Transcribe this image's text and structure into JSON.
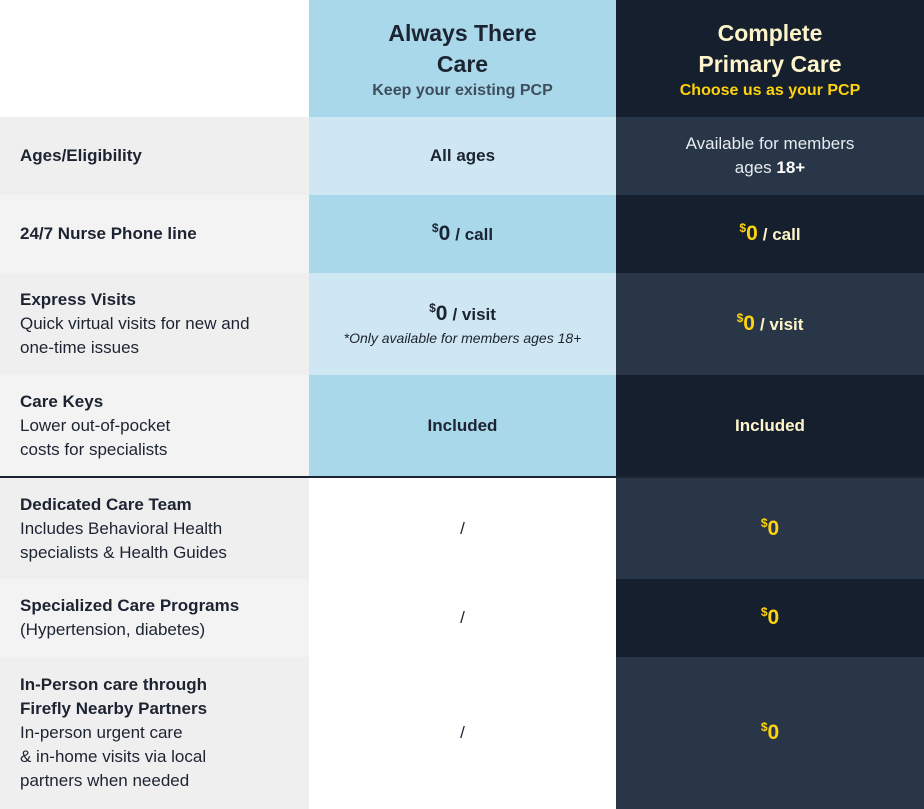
{
  "header": {
    "col2_title_line1": "Always There",
    "col2_title_line2": "Care",
    "col2_subtitle": "Keep your existing PCP",
    "col3_title_line1": "Complete",
    "col3_title_line2": "Primary Care",
    "col3_subtitle": "Choose us as your PCP"
  },
  "rows": [
    {
      "label": "Ages/Eligibility",
      "col2": "All ages",
      "col3_line1": "Available for members",
      "col3_line2_prefix": "ages ",
      "col3_line2_bold": "18+"
    },
    {
      "label": "24/7 Nurse Phone line",
      "col2_currency": "$",
      "col2_amount": "0",
      "col2_unit": "/ call",
      "col3_currency": "$",
      "col3_amount": "0",
      "col3_unit": "/ call"
    },
    {
      "label": "Express Visits",
      "desc_line1": "Quick virtual visits for new and",
      "desc_line2": "one-time issues",
      "col2_currency": "$",
      "col2_amount": "0",
      "col2_unit": "/ visit",
      "col2_note": "*Only available for members ages 18+",
      "col3_currency": "$",
      "col3_amount": "0",
      "col3_unit": "/ visit"
    },
    {
      "label": "Care Keys",
      "desc_line1": "Lower out-of-pocket",
      "desc_line2": "costs for specialists",
      "col2": "Included",
      "col3": "Included"
    },
    {
      "label": "Dedicated Care Team",
      "desc_line1": "Includes Behavioral Health",
      "desc_line2": "specialists & Health Guides",
      "col2": "/",
      "col3_currency": "$",
      "col3_amount": "0"
    },
    {
      "label": "Specialized Care Programs",
      "desc_line1": "(Hypertension, diabetes)",
      "col2": "/",
      "col3_currency": "$",
      "col3_amount": "0"
    },
    {
      "label_line1": "In-Person care through",
      "label_line2": "Firefly Nearby Partners",
      "desc_line1": "In-person urgent care",
      "desc_line2": "& in-home visits via local",
      "desc_line3": "partners when needed",
      "col2": "/",
      "col3_currency": "$",
      "col3_amount": "0"
    }
  ],
  "colors": {
    "col2_header": "#a9d8ea",
    "col3_header": "#161f2e",
    "accent_yellow": "#fdd20e"
  }
}
